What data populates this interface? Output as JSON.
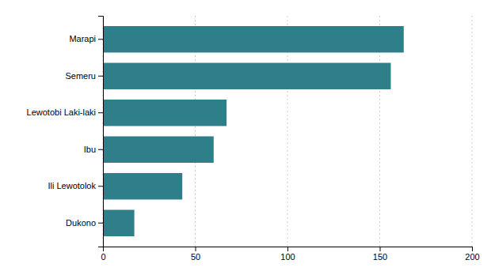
{
  "chart_data": {
    "type": "bar",
    "orientation": "horizontal",
    "categories": [
      "Dukono",
      "Ili Lewotolok",
      "Ibu",
      "Lewotobi Laki-laki",
      "Semeru",
      "Marapi"
    ],
    "values": [
      17,
      43,
      60,
      67,
      156,
      163
    ],
    "color": "#2e7f8a",
    "xlim": [
      0,
      200
    ],
    "xticks": [
      0,
      50,
      100,
      150,
      200
    ],
    "grid": true
  }
}
